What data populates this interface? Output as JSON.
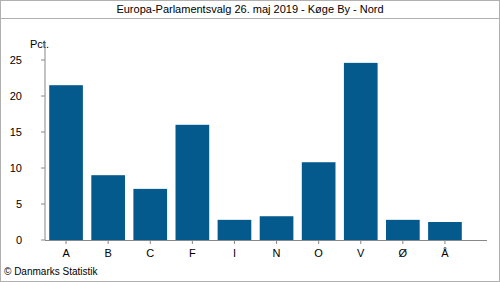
{
  "chart_data": {
    "type": "bar",
    "title": "Europa-Parlamentsvalg 26. maj 2019 - Køge By - Nord",
    "y_label": "Pct.",
    "source": "© Danmarks Statistik",
    "categories": [
      "A",
      "B",
      "C",
      "F",
      "I",
      "N",
      "O",
      "V",
      "Ø",
      "Å"
    ],
    "values": [
      21.5,
      9.0,
      7.1,
      16.0,
      2.8,
      3.3,
      10.8,
      24.6,
      2.8,
      2.5
    ],
    "color": "#045a8d",
    "ylim": [
      0,
      27.5
    ],
    "yticks": [
      0,
      5,
      10,
      15,
      20,
      25
    ],
    "grid": false
  }
}
